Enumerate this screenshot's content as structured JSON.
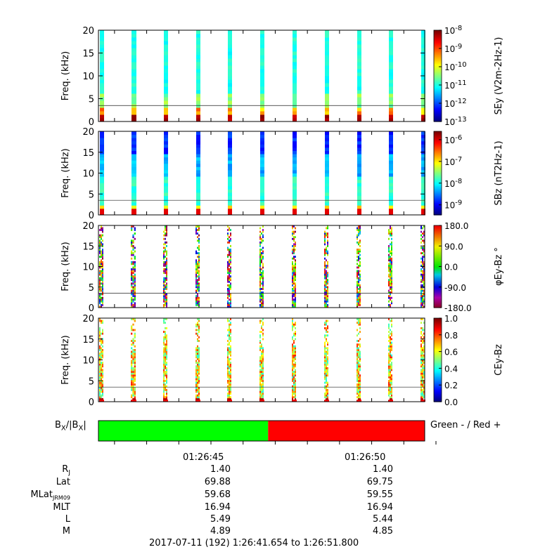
{
  "panels": [
    {
      "ylabel": "Freq. (kHz)",
      "yticks": [
        "0",
        "5",
        "10",
        "15",
        "20"
      ],
      "cbar_ticks": [
        "10-13",
        "10-12",
        "10-11",
        "10-10",
        "10-9",
        "10-8"
      ],
      "cbar_label": "SEy (V2m-2Hz-1)",
      "colormap": "jet"
    },
    {
      "ylabel": "Freq. (kHz)",
      "yticks": [
        "0",
        "5",
        "10",
        "15",
        "20"
      ],
      "cbar_ticks": [
        "10-9",
        "10-8",
        "10-7",
        "10-6"
      ],
      "cbar_label": "SBz (nT2Hz-1)",
      "colormap": "jet"
    },
    {
      "ylabel": "Freq. (kHz)",
      "yticks": [
        "0",
        "5",
        "10",
        "15",
        "20"
      ],
      "cbar_ticks": [
        "-180.0",
        "-90.0",
        "0.0",
        "90.0",
        "180.0"
      ],
      "cbar_label": "φEy-Bz °",
      "colormap": "phase"
    },
    {
      "ylabel": "Freq. (kHz)",
      "yticks": [
        "0",
        "5",
        "10",
        "15",
        "20"
      ],
      "cbar_ticks": [
        "0.0",
        "0.2",
        "0.4",
        "0.6",
        "0.8",
        "1.0"
      ],
      "cbar_label": "CEy-Bz",
      "colormap": "jet"
    }
  ],
  "bx": {
    "label_main": "BX/|BX|",
    "legend": "Green - / Red +",
    "green": "#00ff00",
    "red": "#ff0000",
    "transition_fraction": 0.52
  },
  "time_ticks": [
    "01:26:45",
    "01:26:50"
  ],
  "ephemeris": {
    "labels": [
      "RJ",
      "Lat",
      "MLatJRM09",
      "MLT",
      "L",
      "M"
    ],
    "col1": [
      "1.40",
      "69.88",
      "59.68",
      "16.94",
      "5.49",
      "4.89"
    ],
    "col2": [
      "1.40",
      "69.75",
      "59.55",
      "16.94",
      "5.44",
      "4.85"
    ]
  },
  "footer": "2017-07-11 (192) 1:26:41.654 to 1:26:51.800",
  "chart_data": {
    "type": "heatmap",
    "title": "",
    "xlabel": "",
    "ylabel": "Freq. (kHz)",
    "ylim": [
      0,
      20
    ],
    "time_range": [
      "1:26:41.654",
      "1:26:51.800"
    ],
    "burst_count": 11,
    "series": [
      {
        "name": "SEy",
        "units": "V2m-2Hz-1",
        "scale": "log",
        "zlim": [
          1e-13,
          1e-08
        ]
      },
      {
        "name": "SBz",
        "units": "nT2Hz-1",
        "scale": "log",
        "zlim": [
          3e-10,
          1e-06
        ]
      },
      {
        "name": "φEy-Bz",
        "units": "deg",
        "scale": "linear",
        "zlim": [
          -180,
          180
        ]
      },
      {
        "name": "CEy-Bz",
        "units": "",
        "scale": "linear",
        "zlim": [
          0,
          1
        ]
      }
    ]
  }
}
